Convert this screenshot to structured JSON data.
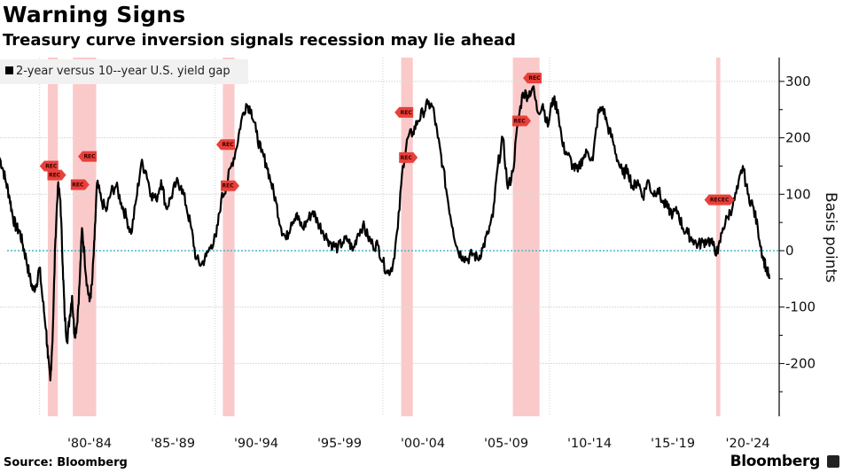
{
  "header": {
    "title": "Warning Signs",
    "subtitle": "Treasury curve inversion signals recession may lie ahead"
  },
  "legend": {
    "label": "2-year versus 10--year U.S. yield gap"
  },
  "footer": {
    "source": "Source: Bloomberg",
    "brand": "Bloomberg"
  },
  "colors": {
    "line": "#000000",
    "recession": "#f9c4c4",
    "rec_tag": "#e8403a",
    "zero_line": "#46b8c8",
    "grid": "#d9d9d9"
  },
  "chart_data": {
    "type": "line",
    "title": "Warning Signs",
    "subtitle": "Treasury curve inversion signals recession may lie ahead",
    "xlabel": "",
    "ylabel": "Basis points",
    "xlim": [
      1977.1,
      2023.3
    ],
    "ylim": [
      -290,
      345
    ],
    "yticks": [
      300,
      200,
      100,
      0,
      -100,
      -200
    ],
    "xtick_labels": [
      {
        "label": "'80-'84",
        "center": 1982.5
      },
      {
        "label": "'85-'89",
        "center": 1987.5
      },
      {
        "label": "'90-'94",
        "center": 1992.5
      },
      {
        "label": "'95-'99",
        "center": 1997.5
      },
      {
        "label": "'00-'04",
        "center": 2002.5
      },
      {
        "label": "'05-'09",
        "center": 2007.5
      },
      {
        "label": "'10-'14",
        "center": 2012.5
      },
      {
        "label": "'15-'19",
        "center": 2017.5
      },
      {
        "label": "'20-'24",
        "center": 2022.0
      }
    ],
    "grid": true,
    "legend_position": "top-left",
    "series": [
      {
        "name": "2-year versus 10--year U.S. yield gap",
        "x": [
          1977.1,
          1977.3,
          1977.5,
          1977.7,
          1977.9,
          1978.1,
          1978.3,
          1978.5,
          1978.7,
          1978.9,
          1979.1,
          1979.3,
          1979.5,
          1979.7,
          1979.9,
          1980.0,
          1980.15,
          1980.3,
          1980.45,
          1980.6,
          1980.75,
          1980.9,
          1981.0,
          1981.15,
          1981.3,
          1981.45,
          1981.6,
          1981.75,
          1981.9,
          1982.05,
          1982.2,
          1982.35,
          1982.5,
          1982.65,
          1982.8,
          1982.95,
          1983.2,
          1983.5,
          1983.8,
          1984.1,
          1984.4,
          1984.7,
          1985.0,
          1985.3,
          1985.6,
          1985.9,
          1986.2,
          1986.5,
          1986.8,
          1987.1,
          1987.4,
          1987.7,
          1988.0,
          1988.3,
          1988.6,
          1988.9,
          1989.2,
          1989.5,
          1989.8,
          1990.1,
          1990.4,
          1990.7,
          1991.0,
          1991.3,
          1991.6,
          1991.9,
          1992.2,
          1992.5,
          1992.8,
          1993.1,
          1993.4,
          1993.7,
          1994.0,
          1994.3,
          1994.6,
          1994.9,
          1995.0,
          1995.3,
          1995.6,
          1995.9,
          1996.2,
          1996.5,
          1996.8,
          1997.1,
          1997.4,
          1997.7,
          1998.0,
          1998.3,
          1998.6,
          1998.9,
          1999.2,
          1999.5,
          1999.8,
          2000.1,
          2000.4,
          2000.7,
          2001.0,
          2001.3,
          2001.6,
          2001.9,
          2002.2,
          2002.5,
          2002.8,
          2003.1,
          2003.4,
          2003.7,
          2004.0,
          2004.3,
          2004.6,
          2004.9,
          2005.2,
          2005.5,
          2005.8,
          2006.1,
          2006.4,
          2006.7,
          2007.0,
          2007.3,
          2007.6,
          2007.9,
          2008.2,
          2008.5,
          2008.8,
          2009.1,
          2009.4,
          2009.7,
          2010.0,
          2010.3,
          2010.6,
          2010.9,
          2011.2,
          2011.5,
          2011.8,
          2012.1,
          2012.4,
          2012.7,
          2013.0,
          2013.3,
          2013.6,
          2013.9,
          2014.2,
          2014.5,
          2014.8,
          2015.1,
          2015.4,
          2015.7,
          2016.0,
          2016.3,
          2016.6,
          2016.9,
          2017.2,
          2017.5,
          2017.8,
          2018.1,
          2018.4,
          2018.7,
          2019.0,
          2019.3,
          2019.6,
          2019.9,
          2020.2,
          2020.5,
          2020.8,
          2021.1,
          2021.4,
          2021.7,
          2022.0,
          2022.3,
          2022.6,
          2022.9,
          2023.1,
          2023.3
        ],
        "y": [
          165,
          145,
          120,
          95,
          60,
          40,
          35,
          10,
          -15,
          -45,
          -70,
          -60,
          -30,
          -90,
          -140,
          -190,
          -230,
          -140,
          20,
          115,
          90,
          -30,
          -110,
          -160,
          -120,
          -80,
          -150,
          -130,
          -60,
          40,
          -10,
          -60,
          -90,
          -60,
          20,
          120,
          90,
          70,
          105,
          115,
          85,
          60,
          30,
          90,
          155,
          140,
          100,
          90,
          125,
          75,
          95,
          120,
          115,
          80,
          40,
          -15,
          -25,
          -10,
          10,
          25,
          90,
          115,
          150,
          180,
          230,
          260,
          250,
          210,
          175,
          155,
          120,
          85,
          40,
          20,
          50,
          65,
          55,
          40,
          55,
          70,
          50,
          35,
          20,
          10,
          5,
          15,
          20,
          0,
          30,
          45,
          25,
          10,
          10,
          -20,
          -40,
          -25,
          40,
          150,
          200,
          210,
          230,
          245,
          260,
          255,
          200,
          150,
          90,
          40,
          0,
          -10,
          -15,
          -5,
          -15,
          5,
          30,
          60,
          150,
          200,
          110,
          140,
          225,
          280,
          275,
          290,
          245,
          260,
          220,
          270,
          250,
          185,
          170,
          150,
          140,
          165,
          175,
          160,
          240,
          255,
          220,
          195,
          160,
          135,
          145,
          110,
          125,
          95,
          125,
          100,
          110,
          85,
          75,
          65,
          70,
          40,
          30,
          20,
          10,
          15,
          20,
          10,
          -5,
          40,
          60,
          80,
          110,
          150,
          100,
          80,
          40,
          -10,
          -30,
          -50
        ]
      }
    ],
    "recessions": [
      {
        "start": 1980.0,
        "end": 1980.6
      },
      {
        "start": 1981.5,
        "end": 1982.9
      },
      {
        "start": 1990.5,
        "end": 1991.2
      },
      {
        "start": 2001.2,
        "end": 2001.9
      },
      {
        "start": 2007.9,
        "end": 2009.5
      },
      {
        "start": 2020.1,
        "end": 2020.35
      }
    ],
    "dotted_verticals": [
      1979.5,
      1990.05,
      2000.1,
      2010.1
    ],
    "annotations": [
      {
        "text": "REC",
        "x": 1980.2,
        "y": 150,
        "dir": "left"
      },
      {
        "text": "REC",
        "x": 1980.4,
        "y": 134,
        "dir": "right"
      },
      {
        "text": "REC",
        "x": 1981.8,
        "y": 117,
        "dir": "right"
      },
      {
        "text": "REC",
        "x": 1982.5,
        "y": 167,
        "dir": "left"
      },
      {
        "text": "REC",
        "x": 1990.8,
        "y": 188,
        "dir": "left"
      },
      {
        "text": "REC",
        "x": 1990.8,
        "y": 115,
        "dir": "right"
      },
      {
        "text": "REC",
        "x": 2001.5,
        "y": 245,
        "dir": "left"
      },
      {
        "text": "REC",
        "x": 2001.5,
        "y": 165,
        "dir": "right"
      },
      {
        "text": "REC",
        "x": 2008.3,
        "y": 230,
        "dir": "right"
      },
      {
        "text": "REC",
        "x": 2009.2,
        "y": 306,
        "dir": "left"
      },
      {
        "text": "RECEC",
        "x": 2020.3,
        "y": 90,
        "dir": "both"
      }
    ],
    "zero_line": {
      "value": 0,
      "style": "dotted"
    }
  }
}
